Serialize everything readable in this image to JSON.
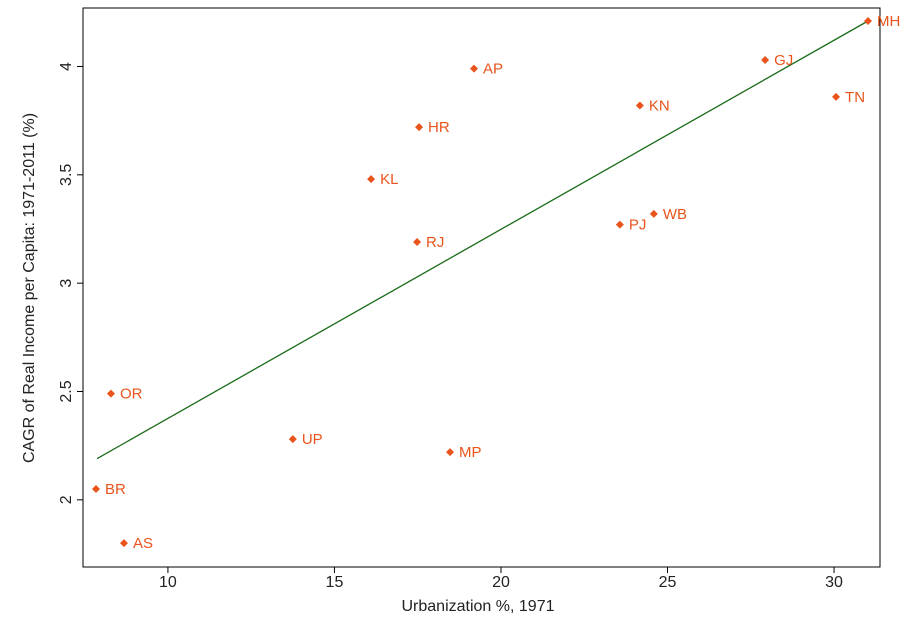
{
  "chart_data": {
    "type": "scatter",
    "x_label": "Urbanization %, 1971",
    "y_label": "CAGR of Real Income per Capita: 1971-2011 (%)",
    "labels": [
      "MH",
      "GJ",
      "TN",
      "AP",
      "KN",
      "HR",
      "KL",
      "WB",
      "PJ",
      "RJ",
      "OR",
      "UP",
      "MP",
      "BR",
      "AS"
    ],
    "x": [
      31.02,
      27.93,
      30.06,
      19.19,
      24.17,
      17.54,
      16.1,
      24.59,
      23.57,
      17.48,
      8.29,
      13.75,
      18.47,
      7.84,
      8.68
    ],
    "values": [
      4.21,
      4.03,
      3.86,
      3.99,
      3.82,
      3.72,
      3.48,
      3.32,
      3.27,
      3.19,
      2.49,
      2.28,
      2.22,
      2.05,
      1.8
    ],
    "color": "#e8541c",
    "fit_line": {
      "x": [
        7.87,
        31.02
      ],
      "y": [
        2.19,
        4.21
      ],
      "color": "#1a6b1a"
    },
    "xlim": [
      7.45,
      31.38
    ],
    "xticks": [
      10,
      15,
      20,
      25,
      30
    ],
    "ylim": [
      1.69,
      4.27
    ],
    "yticks": [
      2,
      2.5,
      3,
      3.5,
      4
    ],
    "grid": false
  }
}
